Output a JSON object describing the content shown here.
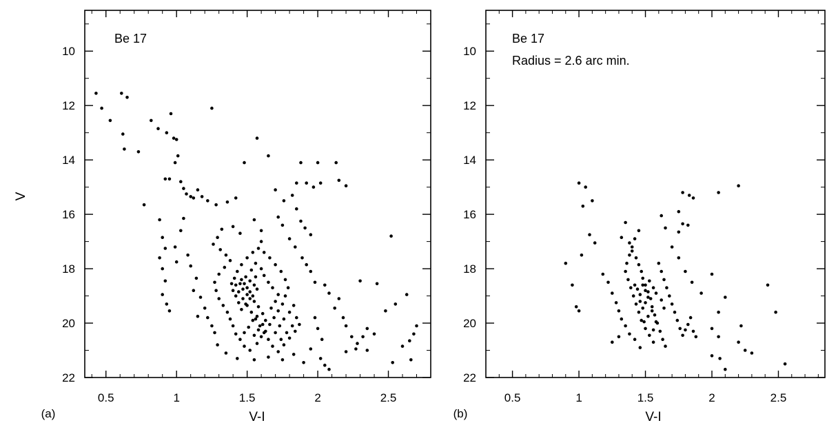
{
  "figure": {
    "ylabel": "V"
  },
  "chart_data": [
    {
      "type": "scatter",
      "panel_label": "(a)",
      "annotations": [
        "Be 17"
      ],
      "xlabel": "V-I",
      "ylabel": "V",
      "xlim": [
        0.35,
        2.8
      ],
      "ylim": [
        22,
        8.5
      ],
      "y_inverted": true,
      "xticks": [
        0.5,
        1,
        1.5,
        2,
        2.5
      ],
      "xtick_labels": [
        "0.5",
        "1",
        "1.5",
        "2",
        "2.5"
      ],
      "yticks": [
        10,
        12,
        14,
        16,
        18,
        20,
        22
      ],
      "ytick_labels": [
        "10",
        "12",
        "14",
        "16",
        "18",
        "20",
        "22"
      ],
      "grid": false,
      "color": "#000000",
      "points": [
        [
          0.43,
          11.55
        ],
        [
          0.47,
          12.1
        ],
        [
          0.53,
          12.55
        ],
        [
          0.61,
          11.55
        ],
        [
          0.65,
          11.7
        ],
        [
          0.62,
          13.05
        ],
        [
          0.63,
          13.6
        ],
        [
          0.73,
          13.7
        ],
        [
          0.77,
          15.65
        ],
        [
          0.82,
          12.55
        ],
        [
          0.87,
          12.85
        ],
        [
          0.93,
          13.0
        ],
        [
          0.96,
          12.3
        ],
        [
          0.98,
          13.2
        ],
        [
          1.0,
          13.25
        ],
        [
          1.01,
          13.85
        ],
        [
          0.99,
          14.1
        ],
        [
          0.92,
          14.7
        ],
        [
          0.95,
          14.7
        ],
        [
          1.25,
          12.1
        ],
        [
          1.57,
          13.2
        ],
        [
          1.65,
          13.85
        ],
        [
          1.88,
          14.1
        ],
        [
          2.0,
          14.1
        ],
        [
          2.13,
          14.1
        ],
        [
          1.48,
          14.1
        ],
        [
          1.03,
          14.8
        ],
        [
          1.05,
          15.05
        ],
        [
          1.07,
          15.25
        ],
        [
          1.1,
          15.35
        ],
        [
          1.12,
          15.4
        ],
        [
          1.15,
          15.1
        ],
        [
          1.18,
          15.35
        ],
        [
          1.22,
          15.5
        ],
        [
          1.28,
          15.65
        ],
        [
          1.36,
          15.55
        ],
        [
          1.42,
          15.4
        ],
        [
          1.85,
          14.85
        ],
        [
          1.92,
          14.85
        ],
        [
          1.97,
          15.0
        ],
        [
          2.02,
          14.85
        ],
        [
          2.15,
          14.75
        ],
        [
          2.2,
          14.95
        ],
        [
          1.7,
          15.1
        ],
        [
          1.76,
          15.5
        ],
        [
          1.82,
          15.3
        ],
        [
          1.85,
          15.8
        ],
        [
          1.88,
          16.25
        ],
        [
          1.91,
          16.5
        ],
        [
          1.95,
          16.75
        ],
        [
          1.72,
          16.1
        ],
        [
          1.75,
          16.4
        ],
        [
          1.8,
          16.9
        ],
        [
          1.84,
          17.2
        ],
        [
          1.89,
          17.6
        ],
        [
          1.92,
          17.85
        ],
        [
          1.95,
          18.1
        ],
        [
          1.98,
          18.5
        ],
        [
          2.05,
          18.6
        ],
        [
          2.08,
          18.9
        ],
        [
          2.15,
          19.1
        ],
        [
          2.12,
          19.45
        ],
        [
          2.18,
          19.8
        ],
        [
          2.2,
          20.1
        ],
        [
          2.24,
          20.5
        ],
        [
          2.28,
          20.75
        ],
        [
          2.32,
          20.5
        ],
        [
          2.35,
          20.2
        ],
        [
          2.4,
          20.4
        ],
        [
          2.3,
          18.45
        ],
        [
          2.42,
          18.55
        ],
        [
          2.52,
          16.8
        ],
        [
          2.63,
          18.95
        ],
        [
          2.55,
          19.3
        ],
        [
          2.48,
          19.55
        ],
        [
          2.6,
          20.85
        ],
        [
          2.65,
          20.65
        ],
        [
          2.68,
          20.4
        ],
        [
          2.7,
          20.1
        ],
        [
          2.53,
          21.45
        ],
        [
          2.66,
          21.35
        ],
        [
          2.2,
          21.05
        ],
        [
          2.27,
          20.95
        ],
        [
          2.35,
          21.0
        ],
        [
          0.88,
          16.2
        ],
        [
          0.9,
          16.85
        ],
        [
          0.92,
          17.25
        ],
        [
          0.88,
          17.6
        ],
        [
          0.9,
          18.0
        ],
        [
          0.92,
          18.45
        ],
        [
          0.9,
          18.95
        ],
        [
          0.93,
          19.3
        ],
        [
          0.95,
          19.55
        ],
        [
          0.99,
          17.2
        ],
        [
          1.0,
          17.75
        ],
        [
          1.03,
          16.6
        ],
        [
          1.05,
          16.15
        ],
        [
          1.08,
          17.5
        ],
        [
          1.1,
          17.9
        ],
        [
          1.14,
          18.35
        ],
        [
          1.12,
          18.8
        ],
        [
          1.17,
          19.05
        ],
        [
          1.2,
          19.45
        ],
        [
          1.15,
          19.75
        ],
        [
          1.22,
          19.8
        ],
        [
          1.25,
          20.1
        ],
        [
          1.27,
          20.35
        ],
        [
          1.29,
          20.8
        ],
        [
          1.35,
          21.1
        ],
        [
          1.43,
          21.3
        ],
        [
          1.55,
          21.35
        ],
        [
          1.65,
          21.25
        ],
        [
          1.75,
          21.35
        ],
        [
          1.83,
          21.15
        ],
        [
          1.95,
          20.95
        ],
        [
          2.02,
          21.3
        ],
        [
          2.05,
          21.55
        ],
        [
          2.08,
          21.7
        ],
        [
          1.9,
          21.45
        ],
        [
          1.98,
          19.8
        ],
        [
          2.0,
          20.2
        ],
        [
          2.03,
          20.6
        ],
        [
          1.6,
          17.0
        ],
        [
          1.55,
          16.2
        ],
        [
          1.6,
          16.6
        ],
        [
          1.45,
          16.7
        ],
        [
          1.4,
          16.45
        ],
        [
          1.32,
          16.55
        ],
        [
          1.29,
          16.85
        ],
        [
          1.26,
          17.1
        ],
        [
          1.31,
          17.3
        ],
        [
          1.35,
          17.5
        ],
        [
          1.38,
          17.7
        ],
        [
          1.34,
          17.95
        ],
        [
          1.3,
          18.2
        ],
        [
          1.27,
          18.5
        ],
        [
          1.28,
          18.8
        ],
        [
          1.3,
          19.1
        ],
        [
          1.33,
          19.35
        ],
        [
          1.36,
          19.6
        ],
        [
          1.38,
          19.85
        ],
        [
          1.4,
          20.1
        ],
        [
          1.42,
          20.4
        ],
        [
          1.45,
          20.6
        ],
        [
          1.48,
          20.85
        ],
        [
          1.52,
          21.0
        ],
        [
          1.57,
          20.75
        ],
        [
          1.6,
          20.5
        ],
        [
          1.63,
          20.3
        ],
        [
          1.66,
          20.05
        ],
        [
          1.69,
          19.8
        ],
        [
          1.72,
          19.55
        ],
        [
          1.75,
          19.3
        ],
        [
          1.77,
          19.0
        ],
        [
          1.79,
          18.7
        ],
        [
          1.77,
          18.4
        ],
        [
          1.74,
          18.1
        ],
        [
          1.7,
          17.85
        ],
        [
          1.66,
          17.6
        ],
        [
          1.62,
          17.4
        ],
        [
          1.58,
          17.25
        ],
        [
          1.54,
          17.4
        ],
        [
          1.5,
          17.6
        ],
        [
          1.46,
          17.85
        ],
        [
          1.43,
          18.1
        ],
        [
          1.41,
          18.35
        ],
        [
          1.42,
          18.6
        ],
        [
          1.44,
          18.85
        ],
        [
          1.47,
          19.1
        ],
        [
          1.5,
          19.35
        ],
        [
          1.53,
          19.6
        ],
        [
          1.56,
          19.85
        ],
        [
          1.59,
          20.1
        ],
        [
          1.62,
          20.35
        ],
        [
          1.65,
          20.6
        ],
        [
          1.68,
          20.85
        ],
        [
          1.72,
          21.05
        ],
        [
          1.76,
          20.8
        ],
        [
          1.8,
          20.55
        ],
        [
          1.84,
          20.3
        ],
        [
          1.87,
          20.05
        ],
        [
          1.85,
          19.8
        ],
        [
          1.82,
          20.1
        ],
        [
          1.78,
          20.35
        ],
        [
          1.74,
          20.6
        ],
        [
          1.7,
          20.35
        ],
        [
          1.73,
          20.1
        ],
        [
          1.76,
          19.85
        ],
        [
          1.8,
          19.6
        ],
        [
          1.83,
          19.35
        ],
        [
          1.46,
          18.4
        ],
        [
          1.48,
          18.55
        ],
        [
          1.5,
          18.7
        ],
        [
          1.52,
          18.85
        ],
        [
          1.54,
          19.0
        ],
        [
          1.5,
          18.95
        ],
        [
          1.47,
          18.75
        ],
        [
          1.45,
          18.55
        ],
        [
          1.49,
          18.3
        ],
        [
          1.52,
          18.45
        ],
        [
          1.55,
          18.6
        ],
        [
          1.57,
          18.75
        ],
        [
          1.55,
          19.2
        ],
        [
          1.52,
          19.1
        ],
        [
          1.49,
          19.3
        ],
        [
          1.46,
          19.5
        ],
        [
          1.44,
          19.25
        ],
        [
          1.42,
          19.0
        ],
        [
          1.4,
          18.8
        ],
        [
          1.39,
          18.55
        ],
        [
          1.58,
          19.4
        ],
        [
          1.61,
          19.65
        ],
        [
          1.63,
          19.9
        ],
        [
          1.57,
          19.75
        ],
        [
          1.54,
          19.9
        ],
        [
          1.51,
          20.15
        ],
        [
          1.48,
          20.35
        ],
        [
          1.55,
          20.45
        ],
        [
          1.58,
          20.25
        ],
        [
          1.61,
          20.05
        ],
        [
          1.67,
          19.45
        ],
        [
          1.7,
          19.2
        ],
        [
          1.72,
          18.95
        ],
        [
          1.68,
          18.7
        ],
        [
          1.65,
          18.5
        ],
        [
          1.62,
          18.25
        ],
        [
          1.6,
          18.0
        ],
        [
          1.56,
          17.8
        ],
        [
          1.53,
          18.05
        ],
        [
          1.56,
          18.3
        ]
      ]
    },
    {
      "type": "scatter",
      "panel_label": "(b)",
      "annotations": [
        "Be 17",
        "Radius = 2.6 arc min."
      ],
      "xlabel": "V-I",
      "ylabel": "",
      "xlim": [
        0.3,
        2.85
      ],
      "ylim": [
        22,
        8.5
      ],
      "y_inverted": true,
      "xticks": [
        0.5,
        1,
        1.5,
        2,
        2.5
      ],
      "xtick_labels": [
        "0.5",
        "1",
        "1.5",
        "2",
        "2.5"
      ],
      "yticks": [
        10,
        12,
        14,
        16,
        18,
        20,
        22
      ],
      "ytick_labels": [
        "10",
        "12",
        "14",
        "16",
        "18",
        "20",
        "22"
      ],
      "grid": false,
      "color": "#000000",
      "points": [
        [
          1.0,
          14.85
        ],
        [
          1.05,
          15.0
        ],
        [
          1.03,
          15.7
        ],
        [
          1.1,
          15.5
        ],
        [
          1.78,
          15.2
        ],
        [
          1.83,
          15.3
        ],
        [
          1.86,
          15.4
        ],
        [
          2.05,
          15.2
        ],
        [
          2.2,
          14.95
        ],
        [
          1.75,
          15.9
        ],
        [
          1.78,
          16.35
        ],
        [
          1.62,
          16.05
        ],
        [
          1.75,
          16.65
        ],
        [
          1.82,
          16.4
        ],
        [
          0.9,
          17.8
        ],
        [
          0.95,
          18.6
        ],
        [
          0.98,
          19.4
        ],
        [
          1.0,
          19.55
        ],
        [
          1.02,
          17.5
        ],
        [
          1.08,
          16.75
        ],
        [
          1.12,
          17.05
        ],
        [
          1.18,
          18.2
        ],
        [
          1.22,
          18.5
        ],
        [
          1.25,
          18.9
        ],
        [
          1.28,
          19.25
        ],
        [
          1.3,
          19.55
        ],
        [
          1.32,
          19.85
        ],
        [
          1.35,
          20.1
        ],
        [
          1.38,
          20.4
        ],
        [
          1.42,
          20.6
        ],
        [
          1.46,
          20.9
        ],
        [
          1.25,
          20.7
        ],
        [
          1.3,
          20.5
        ],
        [
          1.35,
          16.3
        ],
        [
          1.32,
          16.85
        ],
        [
          1.38,
          17.05
        ],
        [
          1.4,
          17.35
        ],
        [
          1.43,
          17.6
        ],
        [
          1.45,
          17.85
        ],
        [
          1.47,
          18.1
        ],
        [
          1.48,
          18.35
        ],
        [
          1.5,
          18.6
        ],
        [
          1.52,
          18.85
        ],
        [
          1.54,
          19.1
        ],
        [
          1.55,
          19.4
        ],
        [
          1.57,
          19.7
        ],
        [
          1.59,
          20.0
        ],
        [
          1.61,
          20.3
        ],
        [
          1.63,
          20.6
        ],
        [
          1.65,
          20.85
        ],
        [
          1.45,
          16.6
        ],
        [
          1.42,
          16.9
        ],
        [
          1.4,
          17.2
        ],
        [
          1.38,
          17.5
        ],
        [
          1.36,
          17.8
        ],
        [
          1.35,
          18.1
        ],
        [
          1.37,
          18.4
        ],
        [
          1.39,
          18.7
        ],
        [
          1.41,
          19.0
        ],
        [
          1.43,
          19.3
        ],
        [
          1.45,
          19.6
        ],
        [
          1.47,
          19.9
        ],
        [
          1.5,
          20.2
        ],
        [
          1.53,
          20.45
        ],
        [
          1.56,
          20.7
        ],
        [
          1.6,
          17.8
        ],
        [
          1.62,
          18.1
        ],
        [
          1.64,
          18.4
        ],
        [
          1.66,
          18.7
        ],
        [
          1.68,
          19.0
        ],
        [
          1.7,
          19.3
        ],
        [
          1.72,
          19.6
        ],
        [
          1.74,
          19.9
        ],
        [
          1.76,
          20.2
        ],
        [
          1.78,
          20.45
        ],
        [
          1.8,
          20.25
        ],
        [
          1.82,
          20.05
        ],
        [
          1.84,
          19.8
        ],
        [
          1.86,
          20.3
        ],
        [
          1.88,
          20.5
        ],
        [
          1.65,
          16.5
        ],
        [
          1.7,
          17.2
        ],
        [
          1.75,
          17.6
        ],
        [
          1.8,
          18.1
        ],
        [
          1.85,
          18.5
        ],
        [
          1.92,
          18.9
        ],
        [
          2.0,
          18.2
        ],
        [
          2.05,
          19.6
        ],
        [
          2.1,
          19.05
        ],
        [
          2.0,
          20.2
        ],
        [
          2.05,
          20.5
        ],
        [
          2.2,
          20.7
        ],
        [
          2.22,
          20.1
        ],
        [
          2.25,
          21.0
        ],
        [
          2.3,
          21.1
        ],
        [
          2.42,
          18.6
        ],
        [
          2.48,
          19.6
        ],
        [
          2.55,
          21.5
        ],
        [
          2.0,
          21.2
        ],
        [
          2.06,
          21.3
        ],
        [
          2.1,
          21.7
        ],
        [
          1.48,
          18.6
        ],
        [
          1.5,
          18.8
        ],
        [
          1.46,
          18.95
        ],
        [
          1.44,
          18.75
        ],
        [
          1.52,
          19.05
        ],
        [
          1.5,
          19.25
        ],
        [
          1.48,
          19.45
        ],
        [
          1.46,
          19.2
        ],
        [
          1.42,
          18.6
        ],
        [
          1.53,
          18.45
        ],
        [
          1.56,
          18.7
        ],
        [
          1.58,
          18.9
        ],
        [
          1.55,
          19.55
        ],
        [
          1.52,
          19.75
        ],
        [
          1.49,
          19.95
        ],
        [
          1.62,
          19.15
        ],
        [
          1.64,
          19.45
        ],
        [
          1.58,
          19.95
        ],
        [
          1.56,
          20.25
        ]
      ]
    }
  ]
}
